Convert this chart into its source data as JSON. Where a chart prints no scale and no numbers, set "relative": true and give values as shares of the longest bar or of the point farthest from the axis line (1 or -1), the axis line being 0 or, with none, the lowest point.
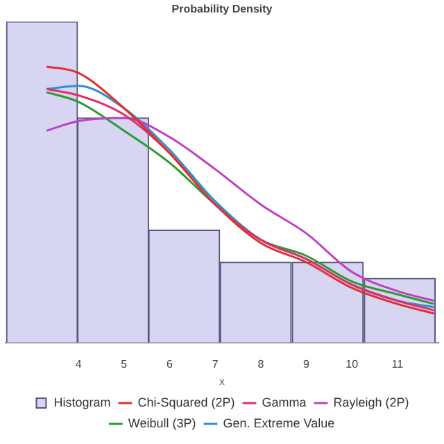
{
  "chart_data": {
    "type": "histogram",
    "title": "Probability Density",
    "xlabel": "x",
    "relative": true,
    "legend": "bottom",
    "xlim": [
      2.4,
      11.9
    ],
    "xticks": [
      4,
      5,
      6,
      7,
      8,
      9,
      10,
      11
    ],
    "bins": [
      2.42,
      3.98,
      5.54,
      7.1,
      8.68,
      10.26,
      11.84
    ],
    "series": [
      {
        "name": "Histogram",
        "color": "#d6d6f2",
        "values": [
          1,
          0.7,
          0.35,
          0.25,
          0.25,
          0.2
        ]
      },
      {
        "type": "line",
        "name": "Chi-Squared (2P)",
        "color": "#e03030",
        "x": [
          3.3,
          4,
          5,
          6,
          7,
          8,
          9,
          10,
          11,
          11.8
        ],
        "values": [
          0.86,
          0.84,
          0.73,
          0.59,
          0.43,
          0.31,
          0.25,
          0.17,
          0.12,
          0.09
        ]
      },
      {
        "type": "line",
        "name": "Gamma",
        "color": "#e0306a",
        "x": [
          3.3,
          4,
          5,
          6,
          7,
          8,
          9,
          10,
          11,
          11.8
        ],
        "values": [
          0.79,
          0.77,
          0.71,
          0.59,
          0.43,
          0.32,
          0.26,
          0.18,
          0.13,
          0.1
        ]
      },
      {
        "type": "line",
        "name": "Rayleigh (2P)",
        "color": "#c040c0",
        "x": [
          3.3,
          4,
          5,
          6,
          7,
          8,
          9,
          10,
          11,
          11.8
        ],
        "values": [
          0.66,
          0.69,
          0.7,
          0.64,
          0.54,
          0.43,
          0.34,
          0.22,
          0.16,
          0.13
        ]
      },
      {
        "type": "line",
        "name": "Weibull (3P)",
        "color": "#2e9a2e",
        "x": [
          3.3,
          4,
          5,
          6,
          7,
          8,
          9,
          10,
          11,
          11.8
        ],
        "values": [
          0.78,
          0.75,
          0.66,
          0.56,
          0.43,
          0.32,
          0.27,
          0.19,
          0.15,
          0.12
        ]
      },
      {
        "type": "line",
        "name": "Gen. Extreme Value",
        "color": "#2f8fd0",
        "x": [
          3.3,
          4,
          5,
          6,
          7,
          8,
          9,
          10,
          11,
          11.8
        ],
        "values": [
          0.79,
          0.8,
          0.73,
          0.6,
          0.44,
          0.32,
          0.26,
          0.18,
          0.13,
          0.11
        ]
      }
    ]
  }
}
